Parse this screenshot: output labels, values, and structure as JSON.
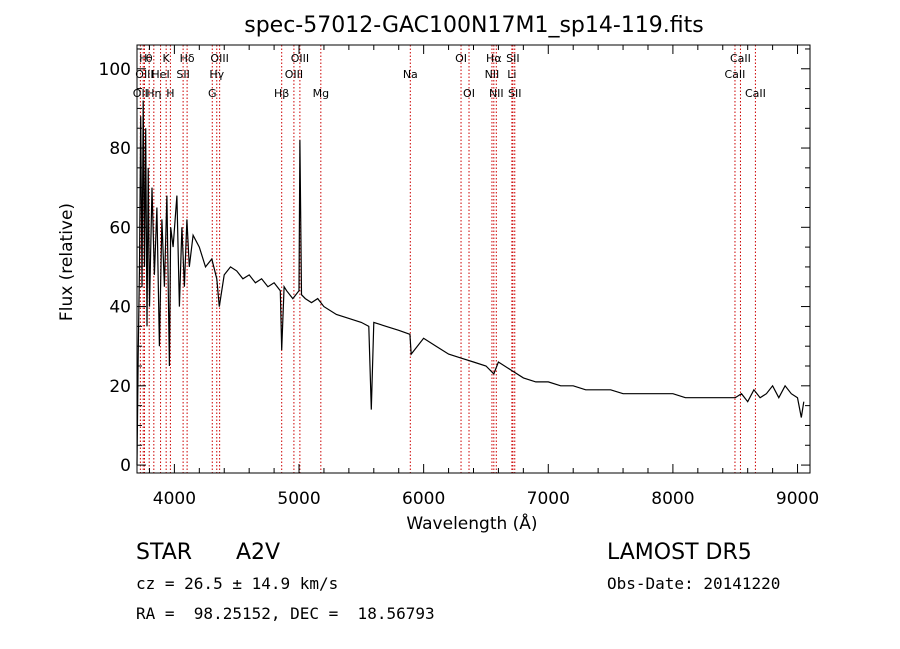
{
  "chart_data": {
    "type": "line",
    "title": "spec-57012-GAC100N17M1_sp14-119.fits",
    "xlabel": "Wavelength (Å)",
    "ylabel": "Flux (relative)",
    "xlim": [
      3700,
      9100
    ],
    "ylim": [
      -2,
      106
    ],
    "xticks": [
      4000,
      5000,
      6000,
      7000,
      8000,
      9000
    ],
    "yticks": [
      0,
      20,
      40,
      60,
      80,
      100
    ],
    "line_color": "#000000",
    "marker_color": "#cc0000",
    "series": [
      {
        "x": [
          3700,
          3710,
          3720,
          3730,
          3740,
          3750,
          3760,
          3770,
          3780,
          3790,
          3800,
          3820,
          3840,
          3860,
          3880,
          3900,
          3920,
          3940,
          3960,
          3970,
          3990,
          4020,
          4040,
          4060,
          4080,
          4100,
          4120,
          4150,
          4200,
          4250,
          4300,
          4340,
          4360,
          4400,
          4450,
          4500,
          4550,
          4600,
          4650,
          4700,
          4750,
          4800,
          4850,
          4861,
          4880,
          4900,
          4950,
          5000,
          5007,
          5020,
          5050,
          5100,
          5150,
          5200,
          5300,
          5400,
          5500,
          5560,
          5580,
          5600,
          5700,
          5800,
          5890,
          5900,
          6000,
          6100,
          6200,
          6300,
          6400,
          6500,
          6563,
          6600,
          6700,
          6800,
          6900,
          7000,
          7100,
          7200,
          7300,
          7400,
          7500,
          7600,
          7700,
          7800,
          7900,
          8000,
          8100,
          8200,
          8300,
          8400,
          8500,
          8550,
          8600,
          8650,
          8700,
          8750,
          8800,
          8850,
          8900,
          8950,
          9000,
          9030,
          9050
        ],
        "y": [
          0,
          28,
          50,
          88,
          45,
          92,
          50,
          85,
          35,
          75,
          40,
          70,
          48,
          65,
          30,
          62,
          45,
          68,
          25,
          60,
          55,
          68,
          40,
          60,
          45,
          62,
          50,
          58,
          55,
          50,
          52,
          47,
          40,
          48,
          50,
          49,
          47,
          48,
          46,
          47,
          45,
          46,
          44,
          29,
          45,
          44,
          42,
          44,
          82,
          43,
          42,
          41,
          42,
          40,
          38,
          37,
          36,
          35,
          14,
          36,
          35,
          34,
          33,
          28,
          32,
          30,
          28,
          27,
          26,
          25,
          23,
          26,
          24,
          22,
          21,
          21,
          20,
          20,
          19,
          19,
          19,
          18,
          18,
          18,
          18,
          18,
          17,
          17,
          17,
          17,
          17,
          18,
          16,
          19,
          17,
          18,
          20,
          17,
          20,
          18,
          17,
          12,
          16
        ]
      }
    ],
    "line_markers": [
      {
        "wl": 3727,
        "row": 3,
        "label": "OII"
      },
      {
        "wl": 3750,
        "row": 1,
        "label": "H"
      },
      {
        "wl": 3760,
        "row": 2,
        "label": "OIII"
      },
      {
        "wl": 3798,
        "row": 1,
        "label": "θ"
      },
      {
        "wl": 3835,
        "row": 3,
        "label": "Hη"
      },
      {
        "wl": 3889,
        "row": 2,
        "label": "HeI"
      },
      {
        "wl": 3934,
        "row": 1,
        "label": "K"
      },
      {
        "wl": 3968,
        "row": 3,
        "label": "H"
      },
      {
        "wl": 4070,
        "row": 2,
        "label": "SII"
      },
      {
        "wl": 4102,
        "row": 1,
        "label": "Hδ"
      },
      {
        "wl": 4304,
        "row": 3,
        "label": "G"
      },
      {
        "wl": 4340,
        "row": 2,
        "label": "Hγ"
      },
      {
        "wl": 4363,
        "row": 1,
        "label": "OIII"
      },
      {
        "wl": 4861,
        "row": 3,
        "label": "Hβ"
      },
      {
        "wl": 4959,
        "row": 2,
        "label": "OIII"
      },
      {
        "wl": 5007,
        "row": 1,
        "label": "OIII"
      },
      {
        "wl": 5175,
        "row": 3,
        "label": "Mg"
      },
      {
        "wl": 5893,
        "row": 2,
        "label": "Na"
      },
      {
        "wl": 6300,
        "row": 1,
        "label": "OI"
      },
      {
        "wl": 6364,
        "row": 3,
        "label": "OI"
      },
      {
        "wl": 6548,
        "row": 2,
        "label": "NII"
      },
      {
        "wl": 6563,
        "row": 1,
        "label": "Hα"
      },
      {
        "wl": 6583,
        "row": 3,
        "label": "NII"
      },
      {
        "wl": 6708,
        "row": 2,
        "label": "Li"
      },
      {
        "wl": 6716,
        "row": 1,
        "label": "SII"
      },
      {
        "wl": 6731,
        "row": 3,
        "label": "SII"
      },
      {
        "wl": 8498,
        "row": 2,
        "label": "CaII"
      },
      {
        "wl": 8542,
        "row": 1,
        "label": "CaII"
      },
      {
        "wl": 8662,
        "row": 3,
        "label": "CaII"
      }
    ]
  },
  "info": {
    "class_label": "STAR",
    "subclass_label": "A2V",
    "survey_label": "LAMOST DR5",
    "cz_line": "cz = 26.5 ± 14.9 km/s",
    "obs_date_line": "Obs-Date: 20141220",
    "coords_line": "RA =  98.25152, DEC =  18.56793"
  }
}
